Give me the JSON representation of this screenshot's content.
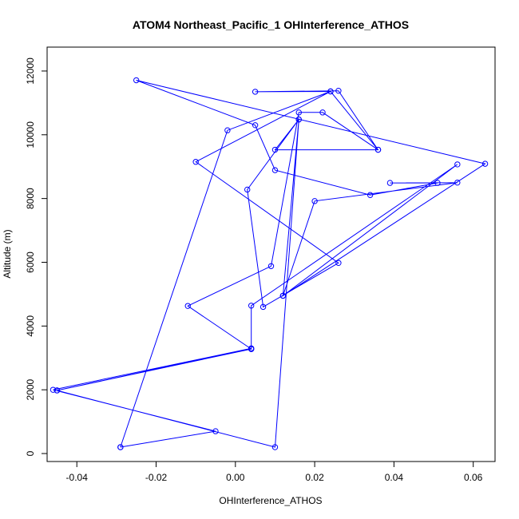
{
  "chart_data": {
    "type": "line",
    "title": "ATOM4 Northeast_Pacific_1 OHInterference_ATHOS",
    "xlabel": "OHInterference_ATHOS",
    "ylabel": "Altitude (m)",
    "xlim": [
      -0.0475,
      0.0655
    ],
    "ylim": [
      -250,
      12750
    ],
    "xticks": [
      -0.04,
      -0.02,
      0.0,
      0.02,
      0.04,
      0.06
    ],
    "xtick_labels": [
      "-0.04",
      "-0.02",
      "0.00",
      "0.02",
      "0.04",
      "0.06"
    ],
    "yticks": [
      0,
      2000,
      4000,
      6000,
      8000,
      10000,
      12000
    ],
    "ytick_labels": [
      "0",
      "2000",
      "4000",
      "6000",
      "8000",
      "10000",
      "12000"
    ],
    "grid": false,
    "marker": "open-circle",
    "series": [
      {
        "color": "#0000ff",
        "points": [
          [
            -0.029,
            200
          ],
          [
            -0.005,
            700
          ],
          [
            -0.046,
            2000
          ],
          [
            0.004,
            3300
          ],
          [
            -0.045,
            1980
          ],
          [
            0.004,
            3280
          ],
          [
            -0.012,
            4630
          ],
          [
            0.009,
            5880
          ],
          [
            0.016,
            10700
          ],
          [
            0.022,
            10700
          ],
          [
            0.036,
            9530
          ],
          [
            0.026,
            11380
          ],
          [
            0.005,
            11350
          ],
          [
            0.024,
            11360
          ],
          [
            -0.01,
            9150
          ],
          [
            0.026,
            5980
          ],
          [
            0.007,
            4600
          ],
          [
            0.003,
            8280
          ],
          [
            0.016,
            10480
          ],
          [
            0.01,
            200
          ],
          [
            -0.045,
            1980
          ],
          [
            0.004,
            3280
          ],
          [
            0.004,
            4640
          ],
          [
            0.056,
            9070
          ],
          [
            0.012,
            4950
          ],
          [
            0.02,
            7920
          ],
          [
            0.056,
            8500
          ],
          [
            0.039,
            8490
          ],
          [
            0.051,
            8490
          ],
          [
            0.034,
            8110
          ],
          [
            0.01,
            8890
          ],
          [
            0.005,
            10300
          ],
          [
            -0.025,
            11710
          ],
          [
            0.063,
            9090
          ],
          [
            0.012,
            4950
          ],
          [
            0.016,
            10480
          ],
          [
            0.01,
            9530
          ],
          [
            0.036,
            9530
          ],
          [
            0.024,
            11360
          ],
          [
            -0.002,
            10140
          ],
          [
            -0.029,
            200
          ]
        ]
      }
    ]
  }
}
